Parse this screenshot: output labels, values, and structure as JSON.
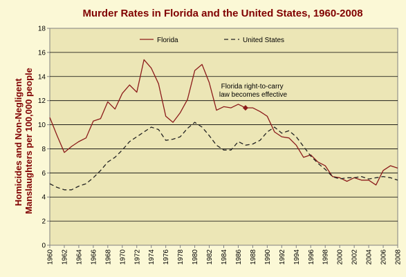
{
  "chart_data": {
    "type": "line",
    "title": "Murder Rates in Florida and the United States, 1960-2008",
    "xlabel": "",
    "ylabel_lines": [
      "Homicides and Non-Negligent",
      "Manslaughters per 100,000 people"
    ],
    "ylim": [
      0,
      18
    ],
    "yticks": [
      0,
      2,
      4,
      6,
      8,
      10,
      12,
      14,
      16,
      18
    ],
    "xlim": [
      1960,
      2008
    ],
    "xticks": [
      1960,
      1962,
      1964,
      1966,
      1968,
      1970,
      1972,
      1974,
      1976,
      1978,
      1980,
      1982,
      1984,
      1986,
      1988,
      1990,
      1992,
      1994,
      1996,
      1998,
      2000,
      2002,
      2004,
      2006,
      2008
    ],
    "grid": "horizontal",
    "legend": "top",
    "x": [
      1960,
      1961,
      1962,
      1963,
      1964,
      1965,
      1966,
      1967,
      1968,
      1969,
      1970,
      1971,
      1972,
      1973,
      1974,
      1975,
      1976,
      1977,
      1978,
      1979,
      1980,
      1981,
      1982,
      1983,
      1984,
      1985,
      1986,
      1987,
      1988,
      1989,
      1990,
      1991,
      1992,
      1993,
      1994,
      1995,
      1996,
      1997,
      1998,
      1999,
      2000,
      2001,
      2002,
      2003,
      2004,
      2005,
      2006,
      2007,
      2008
    ],
    "series": [
      {
        "name": "Florida",
        "color": "#8b1a1a",
        "style": "solid",
        "values": [
          10.6,
          9.1,
          7.7,
          8.2,
          8.6,
          8.9,
          10.3,
          10.5,
          11.9,
          11.3,
          12.6,
          13.3,
          12.7,
          15.4,
          14.7,
          13.4,
          10.7,
          10.2,
          11.0,
          12.1,
          14.5,
          15.0,
          13.5,
          11.2,
          11.5,
          11.4,
          11.7,
          11.4,
          11.4,
          11.1,
          10.7,
          9.4,
          9.0,
          8.9,
          8.3,
          7.3,
          7.5,
          6.9,
          6.6,
          5.7,
          5.6,
          5.3,
          5.6,
          5.4,
          5.4,
          5.0,
          6.2,
          6.6,
          6.4
        ]
      },
      {
        "name": "United States",
        "color": "#222222",
        "style": "dashed",
        "values": [
          5.1,
          4.8,
          4.6,
          4.6,
          4.9,
          5.1,
          5.6,
          6.2,
          6.9,
          7.3,
          7.9,
          8.6,
          9.0,
          9.4,
          9.8,
          9.6,
          8.7,
          8.8,
          9.0,
          9.7,
          10.2,
          9.8,
          9.1,
          8.3,
          7.9,
          7.9,
          8.6,
          8.3,
          8.4,
          8.7,
          9.4,
          9.8,
          9.3,
          9.5,
          9.0,
          8.2,
          7.4,
          6.8,
          6.3,
          5.7,
          5.5,
          5.6,
          5.6,
          5.7,
          5.5,
          5.6,
          5.7,
          5.6,
          5.4
        ]
      }
    ],
    "annotation": {
      "lines": [
        "Florida right-to-carry",
        "law becomes effective"
      ],
      "x": 1987,
      "y": 11.4,
      "series": "Florida"
    }
  }
}
